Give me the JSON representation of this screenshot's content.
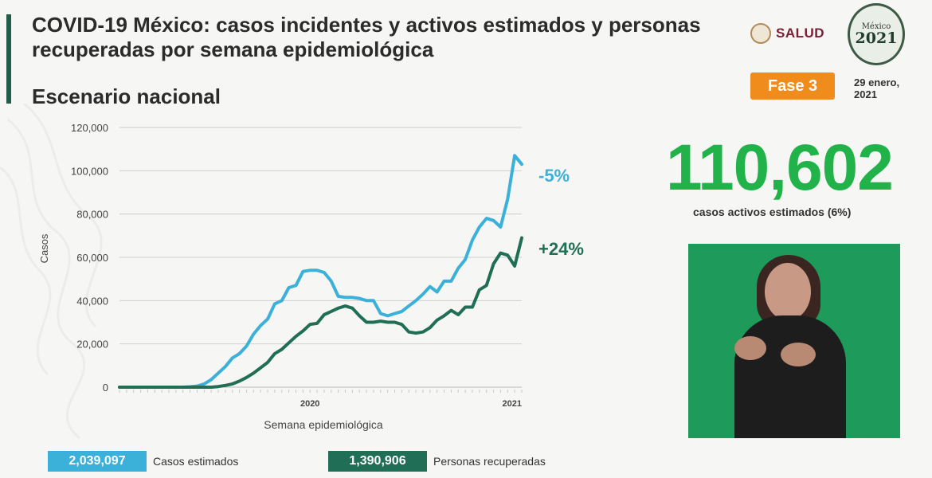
{
  "header": {
    "title": "COVID-19 México: casos incidentes y activos estimados y personas recuperadas por semana epidemiológica",
    "subtitle": "Escenario nacional",
    "salud_logo_text": "SALUD",
    "logo_2021_top": "México",
    "logo_2021_year": "2021",
    "phase_badge": "Fase 3",
    "date": "29 enero, 2021"
  },
  "summary": {
    "active_cases": "110,602",
    "active_cases_label": "casos activos estimados (6%)"
  },
  "legend": {
    "estimated_value": "2,039,097",
    "estimated_label": "Casos estimados",
    "recovered_value": "1,390,906",
    "recovered_label": "Personas recuperadas"
  },
  "colors": {
    "estimated": "#3bb0d8",
    "recovered": "#1f6e55",
    "active_green": "#21b34a",
    "phase": "#f08c1c"
  },
  "chart_data": {
    "type": "line",
    "ylabel": "Casos",
    "xlabel": "Semana epidemiológica",
    "ylim": [
      0,
      120000
    ],
    "yticks": [
      "0",
      "20,000",
      "40,000",
      "60,000",
      "80,000",
      "100,000",
      "120,000"
    ],
    "x_group_labels": [
      "2020",
      "2021"
    ],
    "grid": true,
    "series": [
      {
        "name": "Casos estimados",
        "annotation": "-5%",
        "values": [
          0,
          0,
          0,
          0,
          0,
          0,
          0,
          0,
          0,
          0,
          200,
          500,
          1500,
          3500,
          6500,
          9500,
          13500,
          15500,
          19000,
          24500,
          28500,
          31500,
          38500,
          40000,
          46000,
          47000,
          53500,
          54000,
          54000,
          53000,
          49000,
          42000,
          41500,
          41500,
          41000,
          40000,
          40000,
          34000,
          33000,
          34000,
          35000,
          37500,
          40000,
          43000,
          46500,
          44000,
          49000,
          49000,
          55000,
          59000,
          68000,
          74000,
          78000,
          77000,
          74000,
          87000,
          107000,
          103000
        ]
      },
      {
        "name": "Personas recuperadas",
        "annotation": "+24%",
        "values": [
          0,
          0,
          0,
          0,
          0,
          0,
          0,
          0,
          0,
          0,
          0,
          0,
          0,
          0,
          300,
          800,
          1500,
          2800,
          4500,
          6500,
          9000,
          11500,
          15500,
          17500,
          20500,
          23500,
          26000,
          29000,
          29500,
          33500,
          35000,
          36500,
          37500,
          36500,
          33000,
          30000,
          30000,
          30500,
          30000,
          30000,
          29000,
          25500,
          25000,
          25500,
          27500,
          31000,
          33000,
          35500,
          33500,
          37000,
          37000,
          45000,
          47000,
          57000,
          62000,
          61000,
          56000,
          69000
        ]
      }
    ]
  }
}
